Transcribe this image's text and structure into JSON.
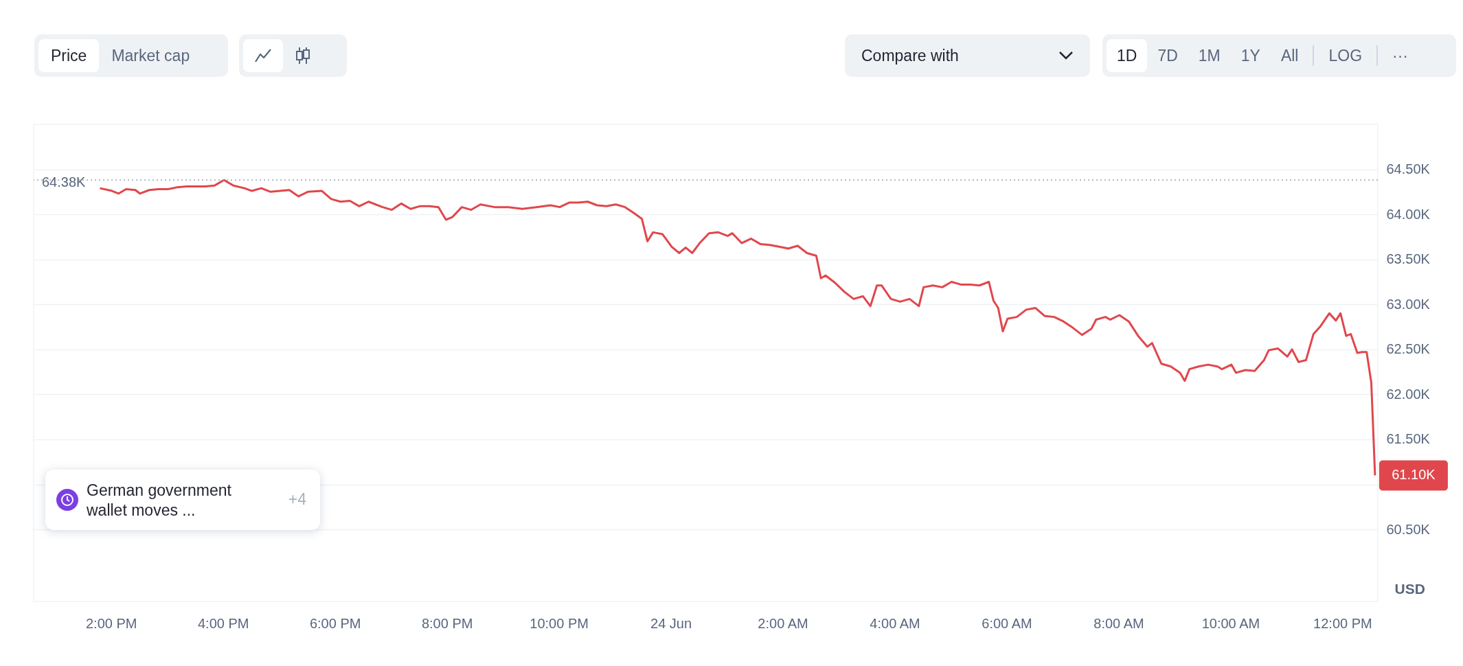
{
  "chart_data": {
    "type": "line",
    "x": [
      "--06-23T13:48",
      "--06-23T14:01",
      "--06-23T14:08",
      "--06-23T14:16",
      "--06-23T14:26",
      "--06-23T14:31",
      "--06-23T14:41",
      "--06-23T14:51",
      "--06-23T15:01",
      "--06-23T15:11",
      "--06-23T15:21",
      "--06-23T15:31",
      "--06-23T15:41",
      "--06-23T15:51",
      "--06-23T16:01",
      "--06-23T16:11",
      "--06-23T16:23",
      "--06-23T16:31",
      "--06-23T16:41",
      "--06-23T16:51",
      "--06-23T17:01",
      "--06-23T17:11",
      "--06-23T17:21",
      "--06-23T17:31",
      "--06-23T17:46",
      "--06-23T17:56",
      "--06-23T18:06",
      "--06-23T18:16",
      "--06-23T18:26",
      "--06-23T18:36",
      "--06-23T18:51",
      "--06-23T19:01",
      "--06-23T19:11",
      "--06-23T19:21",
      "--06-23T19:31",
      "--06-23T19:41",
      "--06-23T19:51",
      "--06-23T19:59",
      "--06-23T20:06",
      "--06-23T20:16",
      "--06-23T20:26",
      "--06-23T20:36",
      "--06-23T20:51",
      "--06-23T21:06",
      "--06-23T21:21",
      "--06-23T21:36",
      "--06-23T21:51",
      "--06-23T22:01",
      "--06-23T22:11",
      "--06-23T22:21",
      "--06-23T22:31",
      "--06-23T22:41",
      "--06-23T22:51",
      "--06-23T23:01",
      "--06-23T23:11",
      "--06-23T23:21",
      "--06-23T23:29",
      "--06-23T23:35",
      "--06-23T23:41",
      "--06-23T23:51",
      "--06-24T00:01",
      "--06-24T00:09",
      "--06-24T00:16",
      "--06-24T00:23",
      "--06-24T00:31",
      "--06-24T00:41",
      "--06-24T00:51",
      "--06-24T01:01",
      "--06-24T01:06",
      "--06-24T01:16",
      "--06-24T01:26",
      "--06-24T01:36",
      "--06-24T01:46",
      "--06-24T01:56",
      "--06-24T02:06",
      "--06-24T02:16",
      "--06-24T02:26",
      "--06-24T02:36",
      "--06-24T02:41",
      "--06-24T02:46",
      "--06-24T02:56",
      "--06-24T03:06",
      "--06-24T03:16",
      "--06-24T03:26",
      "--06-24T03:34",
      "--06-24T03:41",
      "--06-24T03:46",
      "--06-24T03:56",
      "--06-24T04:06",
      "--06-24T04:16",
      "--06-24T04:26",
      "--06-24T04:31",
      "--06-24T04:41",
      "--06-24T04:51",
      "--06-24T05:01",
      "--06-24T05:11",
      "--06-24T05:21",
      "--06-24T05:31",
      "--06-24T05:41",
      "--06-24T05:46",
      "--06-24T05:51",
      "--06-24T05:56",
      "--06-24T06:01",
      "--06-24T06:11",
      "--06-24T06:21",
      "--06-24T06:31",
      "--06-24T06:41",
      "--06-24T06:51",
      "--06-24T07:01",
      "--06-24T07:11",
      "--06-24T07:21",
      "--06-24T07:31",
      "--06-24T07:36",
      "--06-24T07:46",
      "--06-24T07:51",
      "--06-24T08:01",
      "--06-24T08:11",
      "--06-24T08:21",
      "--06-24T08:31",
      "--06-24T08:36",
      "--06-24T08:46",
      "--06-24T08:56",
      "--06-24T09:06",
      "--06-24T09:11",
      "--06-24T09:16",
      "--06-24T09:26",
      "--06-24T09:36",
      "--06-24T09:46",
      "--06-24T09:51",
      "--06-24T10:01",
      "--06-24T10:06",
      "--06-24T10:16",
      "--06-24T10:26",
      "--06-24T10:36",
      "--06-24T10:41",
      "--06-24T10:51",
      "--06-24T11:01",
      "--06-24T11:06",
      "--06-24T11:13",
      "--06-24T11:21",
      "--06-24T11:29",
      "--06-24T11:36",
      "--06-24T11:46",
      "--06-24T11:53",
      "--06-24T11:58",
      "--06-24T12:04",
      "--06-24T12:09",
      "--06-24T12:16",
      "--06-24T12:21",
      "--06-24T12:26",
      "--06-24T12:31",
      "--06-24T12:35"
    ],
    "series": [
      {
        "color": "#e0474c",
        "values": [
          64290,
          64260,
          64230,
          64280,
          64270,
          64230,
          64270,
          64280,
          64280,
          64300,
          64310,
          64310,
          64310,
          64320,
          64380,
          64320,
          64290,
          64260,
          64290,
          64250,
          64260,
          64270,
          64200,
          64250,
          64260,
          64170,
          64140,
          64150,
          64090,
          64140,
          64080,
          64050,
          64120,
          64060,
          64090,
          64090,
          64080,
          63940,
          63970,
          64080,
          64050,
          64110,
          64080,
          64080,
          64060,
          64080,
          64100,
          64080,
          64130,
          64130,
          64140,
          64100,
          64090,
          64110,
          64080,
          64010,
          63950,
          63700,
          63800,
          63780,
          63640,
          63570,
          63630,
          63570,
          63680,
          63790,
          63800,
          63760,
          63790,
          63680,
          63730,
          63670,
          63660,
          63640,
          63620,
          63650,
          63570,
          63540,
          63290,
          63320,
          63240,
          63140,
          63060,
          63090,
          62980,
          63210,
          63210,
          63060,
          63030,
          63060,
          62980,
          63190,
          63210,
          63190,
          63250,
          63220,
          63220,
          63210,
          63250,
          63040,
          62960,
          62700,
          62840,
          62860,
          62940,
          62960,
          62870,
          62860,
          62810,
          62740,
          62660,
          62730,
          62830,
          62860,
          62830,
          62880,
          62810,
          62650,
          62530,
          62570,
          62340,
          62310,
          62240,
          62150,
          62280,
          62310,
          62330,
          62310,
          62280,
          62330,
          62240,
          62270,
          62260,
          62380,
          62490,
          62510,
          62420,
          62500,
          62360,
          62380,
          62670,
          62750,
          62900,
          62820,
          62900,
          62650,
          62670,
          62460,
          62470,
          62470,
          62130,
          61100
        ]
      }
    ],
    "xlim": [
      "--06-23T12:37",
      "--06-24T12:38"
    ],
    "xticks": [
      {
        "value": "--06-23T14:00",
        "label": "2:00 PM"
      },
      {
        "value": "--06-23T16:00",
        "label": "4:00 PM"
      },
      {
        "value": "--06-23T18:00",
        "label": "6:00 PM"
      },
      {
        "value": "--06-23T20:00",
        "label": "8:00 PM"
      },
      {
        "value": "--06-23T22:00",
        "label": "10:00 PM"
      },
      {
        "value": "--06-24T00:00",
        "label": "24 Jun"
      },
      {
        "value": "--06-24T02:00",
        "label": "2:00 AM"
      },
      {
        "value": "--06-24T04:00",
        "label": "4:00 AM"
      },
      {
        "value": "--06-24T06:00",
        "label": "6:00 AM"
      },
      {
        "value": "--06-24T08:00",
        "label": "8:00 AM"
      },
      {
        "value": "--06-24T10:00",
        "label": "10:00 AM"
      },
      {
        "value": "--06-24T12:00",
        "label": "12:00 PM"
      }
    ],
    "ylim": [
      59700,
      65000
    ],
    "yticks": [
      {
        "value": 60500,
        "label": "60.50K"
      },
      {
        "value": 61000,
        "label": null
      },
      {
        "value": 61500,
        "label": "61.50K"
      },
      {
        "value": 62000,
        "label": "62.00K"
      },
      {
        "value": 62500,
        "label": "62.50K"
      },
      {
        "value": 63000,
        "label": "63.00K"
      },
      {
        "value": 63500,
        "label": "63.50K"
      },
      {
        "value": 64000,
        "label": "64.00K"
      },
      {
        "value": 64500,
        "label": "64.50K"
      }
    ],
    "ylabel": "USD",
    "grid": "y",
    "line_style": "solid",
    "ref_lines": [
      {
        "axis": "y",
        "value": 64380,
        "label": "64.38K",
        "line_style": "dotted",
        "color": "#9aa3b2"
      }
    ],
    "annotations": [
      {
        "text": "61.10K",
        "x": "--06-24T12:35",
        "y": 61100
      },
      "German government wallet moves ...",
      "+4",
      "Price",
      "Market cap",
      "Compare with",
      "1D",
      "7D",
      "1M",
      "1Y",
      "All",
      "LOG",
      "···"
    ]
  }
}
